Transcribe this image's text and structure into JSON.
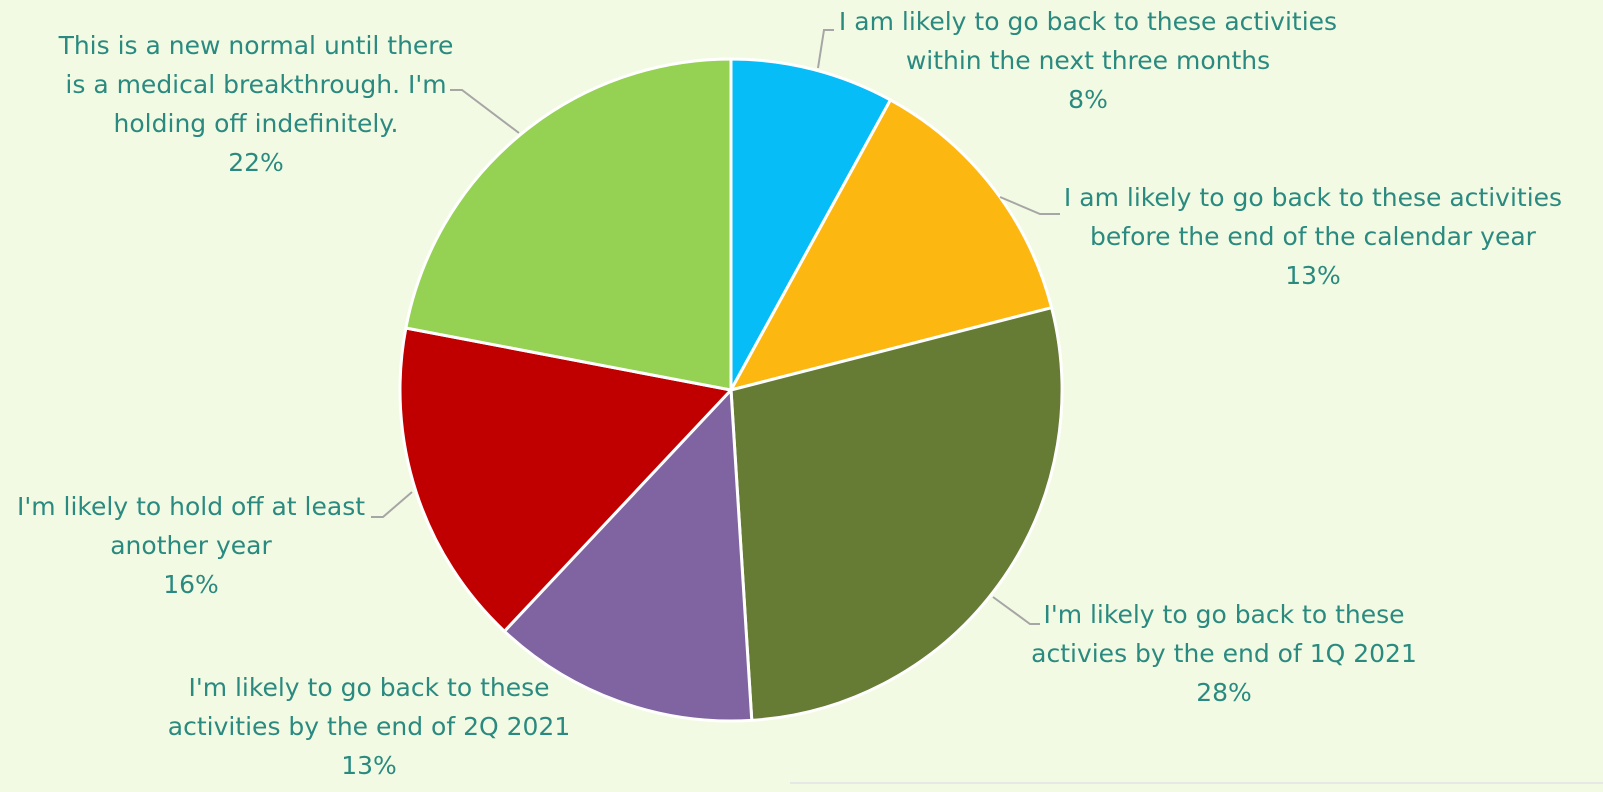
{
  "chart_data": {
    "type": "pie",
    "title": "",
    "start_angle_deg": 0,
    "direction": "clockwise",
    "slices": [
      {
        "label_lines": [
          "I am likely to go back to these activities",
          "within the next three months"
        ],
        "value": 8,
        "value_text": "8%",
        "color": "#07bdf7"
      },
      {
        "label_lines": [
          "I am likely to go back to these activities",
          "before the end of the calendar year"
        ],
        "value": 13,
        "value_text": "13%",
        "color": "#fdb711"
      },
      {
        "label_lines": [
          "I'm likely to go back to these",
          "activies by the end of 1Q 2021"
        ],
        "value": 28,
        "value_text": "28%",
        "color": "#667c34"
      },
      {
        "label_lines": [
          "I'm likely to go back to these",
          "activities by the end of 2Q 2021"
        ],
        "value": 13,
        "value_text": "13%",
        "color": "#8064a2"
      },
      {
        "label_lines": [
          "I'm likely to hold off at least",
          "another year"
        ],
        "value": 16,
        "value_text": "16%",
        "color": "#c00000"
      },
      {
        "label_lines": [
          "This is a new normal until there",
          "is a medical breakthrough. I'm",
          "holding off indefinitely."
        ],
        "value": 22,
        "value_text": "22%",
        "color": "#95d152"
      }
    ],
    "label_color": "#2a8a80",
    "leader_line_color": "#a6a6a6",
    "background": "#f3fae3"
  }
}
